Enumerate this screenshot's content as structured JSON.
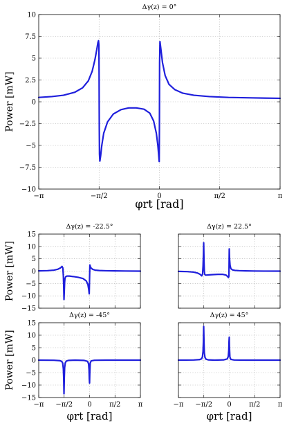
{
  "chart_data": [
    {
      "id": "main",
      "type": "line",
      "title": "Δγ(z) = 0°",
      "xlabel": "φrt [rad]",
      "ylabel": "Power [mW]",
      "xlim": [
        -3.14159,
        3.14159
      ],
      "ylim": [
        -10,
        10
      ],
      "xticks": [
        -3.14159,
        -1.5708,
        0,
        1.5708,
        3.14159
      ],
      "xticklabels": [
        "−π",
        "−π/2",
        "0",
        "π/2",
        "π"
      ],
      "yticks": [
        -10,
        -7.5,
        -5,
        -2.5,
        0,
        2.5,
        5,
        7.5,
        10
      ],
      "yticklabels": [
        "−10",
        "−7.5",
        "−5",
        "−2.5",
        "0",
        "2.5",
        "5",
        "7.5",
        "10"
      ],
      "grid": true,
      "series": [
        {
          "color": "#1f1fdc",
          "x": [
            -3.1416,
            -2.8,
            -2.5,
            -2.2,
            -2.0,
            -1.85,
            -1.75,
            -1.68,
            -1.63,
            -1.6,
            -1.585,
            -1.575,
            -1.57,
            -1.568,
            -1.565,
            -1.56,
            -1.55,
            -1.53,
            -1.5,
            -1.45,
            -1.35,
            -1.2,
            -1.0,
            -0.8,
            -0.6,
            -0.4,
            -0.25,
            -0.15,
            -0.08,
            -0.04,
            -0.015,
            -0.005,
            0.0,
            0.005,
            0.015,
            0.04,
            0.08,
            0.15,
            0.25,
            0.4,
            0.6,
            0.9,
            1.3,
            1.8,
            2.4,
            3.1416
          ],
          "y": [
            0.5,
            0.6,
            0.75,
            1.1,
            1.6,
            2.4,
            3.5,
            4.8,
            6.0,
            6.8,
            7.0,
            6.5,
            3.0,
            0.0,
            -3.0,
            -6.0,
            -6.8,
            -6.2,
            -5.0,
            -3.6,
            -2.3,
            -1.4,
            -0.9,
            -0.7,
            -0.7,
            -0.85,
            -1.3,
            -2.2,
            -3.6,
            -5.0,
            -6.3,
            -6.85,
            -3.0,
            4.5,
            6.9,
            6.0,
            4.5,
            3.0,
            2.0,
            1.4,
            1.0,
            0.75,
            0.6,
            0.5,
            0.45,
            0.4
          ]
        }
      ]
    },
    {
      "id": "m22",
      "type": "line",
      "title": "Δγ(z) = -22.5°",
      "xlabel": "",
      "ylabel": "Power [mW]",
      "xlim": [
        -3.14159,
        3.14159
      ],
      "ylim": [
        -15,
        15
      ],
      "xticks": [
        -3.14159,
        -1.5708,
        0,
        1.5708,
        3.14159
      ],
      "yticks": [
        -15,
        -10,
        -5,
        0,
        5,
        10,
        15
      ],
      "yticklabels": [
        "−15",
        "−10",
        "−5",
        "0",
        "5",
        "10",
        "15"
      ],
      "grid": true,
      "series": [
        {
          "color": "#1f1fdc",
          "x": [
            -3.1416,
            -2.6,
            -2.2,
            -1.95,
            -1.8,
            -1.7,
            -1.65,
            -1.62,
            -1.6,
            -1.58,
            -1.56,
            -1.54,
            -1.52,
            -1.48,
            -1.4,
            -1.25,
            -1.0,
            -0.7,
            -0.4,
            -0.2,
            -0.1,
            -0.05,
            -0.02,
            0.0,
            0.02,
            0.05,
            0.1,
            0.2,
            0.35,
            0.6,
            1.0,
            1.5,
            2.2,
            3.1416
          ],
          "y": [
            0.1,
            0.2,
            0.4,
            0.8,
            1.3,
            1.9,
            1.2,
            -2.0,
            -6.0,
            -11.5,
            -8.0,
            -4.5,
            -3.0,
            -2.3,
            -2.0,
            -2.0,
            -2.2,
            -2.5,
            -3.0,
            -4.0,
            -5.5,
            -7.5,
            -9.2,
            -3.0,
            2.5,
            1.8,
            1.2,
            0.7,
            0.4,
            0.25,
            0.15,
            0.1,
            0.05,
            0.0
          ]
        }
      ]
    },
    {
      "id": "p22",
      "type": "line",
      "title": "Δγ(z) = 22.5°",
      "xlabel": "",
      "ylabel": "",
      "xlim": [
        -3.14159,
        3.14159
      ],
      "ylim": [
        -15,
        15
      ],
      "xticks": [
        -3.14159,
        -1.5708,
        0,
        1.5708,
        3.14159
      ],
      "grid": true,
      "series": [
        {
          "color": "#1f1fdc",
          "x": [
            -3.1416,
            -2.6,
            -2.2,
            -1.95,
            -1.8,
            -1.7,
            -1.65,
            -1.62,
            -1.6,
            -1.58,
            -1.56,
            -1.54,
            -1.52,
            -1.48,
            -1.4,
            -1.25,
            -1.0,
            -0.7,
            -0.4,
            -0.2,
            -0.1,
            -0.05,
            -0.02,
            0.0,
            0.02,
            0.05,
            0.1,
            0.2,
            0.35,
            0.6,
            1.0,
            1.5,
            2.2,
            3.1416
          ],
          "y": [
            -0.1,
            -0.2,
            -0.4,
            -0.8,
            -1.3,
            -1.9,
            -1.2,
            2.0,
            6.0,
            11.5,
            4.0,
            0.0,
            -1.2,
            -1.6,
            -1.6,
            -1.5,
            -1.4,
            -1.3,
            -1.3,
            -1.6,
            -2.2,
            -2.6,
            -2.0,
            9.0,
            5.0,
            2.4,
            1.0,
            0.5,
            0.3,
            0.2,
            0.1,
            0.05,
            0.02,
            0.0
          ]
        }
      ]
    },
    {
      "id": "m45",
      "type": "line",
      "title": "Δγ(z) = -45°",
      "xlabel": "φrt [rad]",
      "ylabel": "Power [mW]",
      "xlim": [
        -3.14159,
        3.14159
      ],
      "ylim": [
        -15,
        15
      ],
      "xticks": [
        -3.14159,
        -1.5708,
        0,
        1.5708,
        3.14159
      ],
      "xticklabels": [
        "−π",
        "−π/2",
        "0",
        "π/2",
        "π"
      ],
      "yticks": [
        -15,
        -10,
        -5,
        0,
        5,
        10,
        15
      ],
      "yticklabels": [
        "−15",
        "−10",
        "−5",
        "0",
        "5",
        "10",
        "15"
      ],
      "grid": true,
      "series": [
        {
          "color": "#1f1fdc",
          "x": [
            -3.1416,
            -2.2,
            -1.85,
            -1.72,
            -1.66,
            -1.62,
            -1.6,
            -1.58,
            -1.56,
            -1.54,
            -1.5,
            -1.44,
            -1.3,
            -0.9,
            -0.35,
            -0.12,
            -0.06,
            -0.03,
            -0.015,
            0.0,
            0.015,
            0.04,
            0.1,
            0.3,
            1.0,
            3.1416
          ],
          "y": [
            0.0,
            -0.05,
            -0.2,
            -0.5,
            -1.2,
            -3.5,
            -7.0,
            -13.5,
            -7.0,
            -3.0,
            -1.1,
            -0.4,
            -0.1,
            0.0,
            -0.1,
            -0.5,
            -1.5,
            -4.0,
            -7.5,
            -9.2,
            -5.0,
            -1.2,
            -0.3,
            -0.05,
            0.0,
            0.0
          ]
        }
      ]
    },
    {
      "id": "p45",
      "type": "line",
      "title": "Δγ(z) = 45°",
      "xlabel": "φrt [rad]",
      "ylabel": "",
      "xlim": [
        -3.14159,
        3.14159
      ],
      "ylim": [
        -15,
        15
      ],
      "xticks": [
        -3.14159,
        -1.5708,
        0,
        1.5708,
        3.14159
      ],
      "xticklabels": [
        "−π",
        "−π/2",
        "0",
        "π/2",
        "π"
      ],
      "grid": true,
      "series": [
        {
          "color": "#1f1fdc",
          "x": [
            -3.1416,
            -2.2,
            -1.85,
            -1.72,
            -1.66,
            -1.62,
            -1.6,
            -1.58,
            -1.56,
            -1.54,
            -1.5,
            -1.44,
            -1.3,
            -0.9,
            -0.35,
            -0.12,
            -0.06,
            -0.03,
            -0.015,
            0.0,
            0.015,
            0.04,
            0.1,
            0.3,
            1.0,
            3.1416
          ],
          "y": [
            0.0,
            0.05,
            0.2,
            0.5,
            1.2,
            3.5,
            7.0,
            13.5,
            7.0,
            3.0,
            1.1,
            0.4,
            0.1,
            0.0,
            0.1,
            0.5,
            1.5,
            4.0,
            7.5,
            9.2,
            5.0,
            1.2,
            0.3,
            0.05,
            0.0,
            0.0
          ]
        }
      ]
    }
  ]
}
